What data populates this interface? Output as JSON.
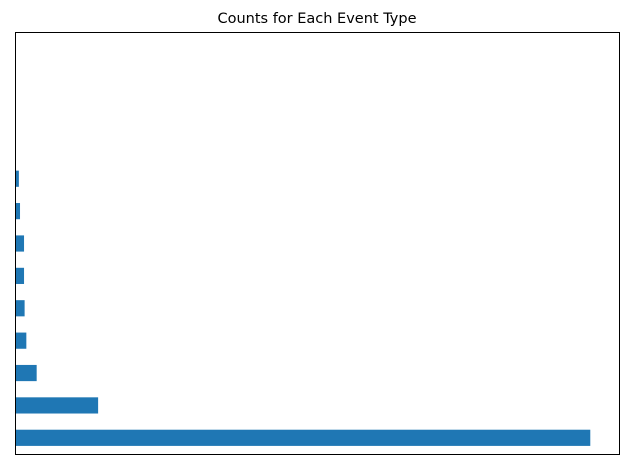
{
  "chart_data": {
    "type": "bar",
    "orientation": "horizontal",
    "title": "Counts for Each Event Type",
    "xlabel": "",
    "ylabel": "",
    "categories": [
      "",
      "",
      "",
      "",
      "",
      "",
      "",
      "",
      "",
      "",
      "",
      "",
      ""
    ],
    "values": [
      1000,
      143,
      36,
      18,
      15,
      14,
      14,
      7,
      5,
      0,
      0,
      0,
      0
    ],
    "xlim": [
      0,
      1050
    ],
    "bar_color": "#1f77b4",
    "axis_ticks_visible": false,
    "grid": false,
    "legend": "none"
  }
}
